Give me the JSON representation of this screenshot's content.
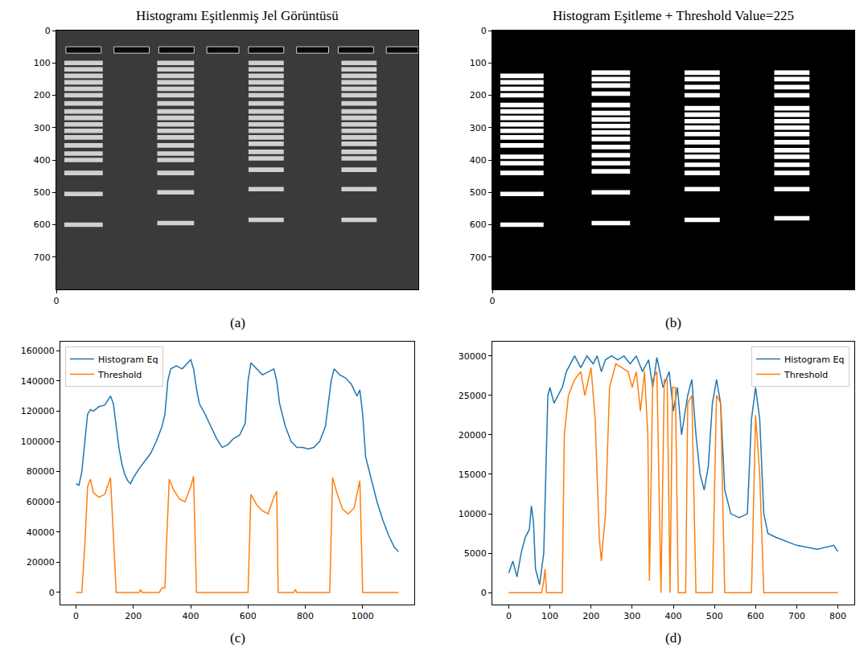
{
  "chart_data": [
    {
      "type": "image",
      "title": "Histogramı Eşitlenmiş Jel Görüntüsü",
      "panel_label": "(a)",
      "xlim": [
        0,
        1130
      ],
      "ylim": [
        800,
        0
      ],
      "xticks": [
        0
      ],
      "yticks": [
        0,
        100,
        200,
        300,
        400,
        500,
        600,
        700
      ],
      "wells": {
        "y": 60,
        "x": [
          [
            30,
            140
          ],
          [
            180,
            290
          ],
          [
            320,
            430
          ],
          [
            470,
            570
          ],
          [
            600,
            710
          ],
          [
            750,
            850
          ],
          [
            880,
            990
          ],
          [
            1030,
            1130
          ]
        ]
      },
      "lanes": [
        {
          "x": [
            25,
            145
          ],
          "bands": [
            100,
            120,
            140,
            160,
            180,
            200,
            225,
            250,
            270,
            290,
            310,
            330,
            355,
            380,
            400,
            440,
            505,
            600
          ]
        },
        {
          "x": [
            315,
            430
          ],
          "bands": [
            100,
            120,
            140,
            160,
            180,
            200,
            225,
            250,
            270,
            290,
            310,
            330,
            355,
            380,
            400,
            440,
            500,
            595
          ]
        },
        {
          "x": [
            600,
            710
          ],
          "bands": [
            100,
            120,
            140,
            160,
            180,
            200,
            225,
            250,
            270,
            290,
            310,
            330,
            350,
            375,
            395,
            430,
            490,
            585
          ]
        },
        {
          "x": [
            890,
            1000
          ],
          "bands": [
            100,
            120,
            140,
            160,
            180,
            200,
            225,
            250,
            270,
            290,
            310,
            330,
            350,
            375,
            395,
            430,
            490,
            585
          ]
        }
      ]
    },
    {
      "type": "image",
      "title": "Histogram Eşitleme + Threshold Value=225",
      "panel_label": "(b)",
      "xlim": [
        0,
        1130
      ],
      "ylim": [
        800,
        0
      ],
      "xticks": [
        0
      ],
      "yticks": [
        0,
        100,
        200,
        300,
        400,
        500,
        600,
        700
      ],
      "lanes": [
        {
          "x": [
            25,
            160
          ],
          "bands": [
            140,
            160,
            180,
            200,
            230,
            250,
            270,
            290,
            310,
            330,
            355,
            390,
            410,
            440,
            505,
            600
          ]
        },
        {
          "x": [
            310,
            430
          ],
          "bands": [
            130,
            150,
            170,
            195,
            230,
            255,
            275,
            295,
            315,
            335,
            360,
            385,
            410,
            435,
            500,
            595
          ]
        },
        {
          "x": [
            600,
            710
          ],
          "bands": [
            130,
            150,
            175,
            200,
            240,
            260,
            280,
            300,
            320,
            345,
            370,
            390,
            415,
            440,
            490,
            585
          ]
        },
        {
          "x": [
            880,
            990
          ],
          "bands": [
            130,
            150,
            175,
            200,
            240,
            260,
            280,
            300,
            320,
            345,
            370,
            390,
            415,
            440,
            490,
            580
          ]
        }
      ]
    },
    {
      "type": "line",
      "panel_label": "(c)",
      "legend": "upper left",
      "grid": false,
      "xlim": [
        -55,
        1180
      ],
      "ylim": [
        -8000,
        166000
      ],
      "xticks": [
        0,
        200,
        400,
        600,
        800,
        1000
      ],
      "yticks": [
        0,
        20000,
        40000,
        60000,
        80000,
        100000,
        120000,
        140000,
        160000
      ],
      "series": [
        {
          "name": "Histogram Eq",
          "color": "#1f77b4",
          "x": [
            0,
            10,
            20,
            30,
            40,
            50,
            60,
            80,
            100,
            120,
            130,
            140,
            150,
            160,
            170,
            180,
            190,
            200,
            220,
            240,
            260,
            280,
            300,
            310,
            320,
            330,
            350,
            370,
            390,
            400,
            410,
            420,
            430,
            450,
            470,
            490,
            510,
            530,
            550,
            570,
            590,
            600,
            610,
            630,
            650,
            670,
            690,
            700,
            710,
            730,
            750,
            770,
            790,
            810,
            830,
            850,
            870,
            890,
            900,
            920,
            940,
            960,
            980,
            990,
            1000,
            1010,
            1030,
            1050,
            1070,
            1090,
            1110,
            1125
          ],
          "values": [
            72000,
            71000,
            80000,
            100000,
            118000,
            121000,
            120000,
            123000,
            124000,
            130000,
            125000,
            110000,
            95000,
            85000,
            78000,
            74000,
            72000,
            76000,
            82000,
            87000,
            92000,
            100000,
            110000,
            118000,
            140000,
            148000,
            150000,
            148000,
            152000,
            154000,
            148000,
            135000,
            125000,
            118000,
            110000,
            102000,
            96000,
            98000,
            102000,
            104000,
            112000,
            140000,
            152000,
            148000,
            144000,
            146000,
            148000,
            140000,
            125000,
            110000,
            100000,
            96000,
            96000,
            95000,
            96000,
            100000,
            110000,
            140000,
            148000,
            144000,
            142000,
            138000,
            130000,
            134000,
            118000,
            90000,
            75000,
            60000,
            48000,
            38000,
            30000,
            27000
          ]
        },
        {
          "name": "Threshold",
          "color": "#ff7f0e",
          "x": [
            0,
            20,
            30,
            40,
            50,
            60,
            80,
            100,
            120,
            130,
            140,
            220,
            225,
            230,
            290,
            300,
            310,
            315,
            325,
            340,
            360,
            380,
            400,
            410,
            420,
            600,
            610,
            630,
            650,
            670,
            690,
            700,
            705,
            760,
            765,
            770,
            885,
            895,
            910,
            930,
            950,
            970,
            990,
            1000,
            1125
          ],
          "values": [
            0,
            0,
            30000,
            70000,
            75000,
            66000,
            63000,
            65000,
            76000,
            40000,
            0,
            0,
            2000,
            0,
            0,
            3000,
            3000,
            30000,
            75000,
            68000,
            62000,
            60000,
            70000,
            77000,
            0,
            0,
            65000,
            58000,
            54000,
            52000,
            63000,
            67000,
            0,
            0,
            2000,
            0,
            0,
            76000,
            66000,
            55000,
            52000,
            56000,
            74000,
            0,
            0
          ]
        }
      ]
    },
    {
      "type": "line",
      "panel_label": "(d)",
      "legend": "upper right",
      "grid": false,
      "xlim": [
        -40,
        840
      ],
      "ylim": [
        -1500,
        31800
      ],
      "xticks": [
        0,
        100,
        200,
        300,
        400,
        500,
        600,
        700,
        800
      ],
      "yticks": [
        0,
        5000,
        10000,
        15000,
        20000,
        25000,
        30000
      ],
      "series": [
        {
          "name": "Histogram Eq",
          "color": "#1f77b4",
          "x": [
            0,
            10,
            20,
            30,
            40,
            50,
            55,
            60,
            65,
            75,
            85,
            90,
            95,
            100,
            110,
            120,
            130,
            140,
            150,
            160,
            175,
            190,
            205,
            215,
            225,
            235,
            250,
            265,
            280,
            295,
            310,
            325,
            340,
            350,
            360,
            375,
            390,
            400,
            410,
            420,
            435,
            445,
            455,
            465,
            475,
            485,
            495,
            505,
            515,
            525,
            540,
            560,
            580,
            590,
            600,
            610,
            620,
            630,
            650,
            700,
            750,
            790,
            800
          ],
          "values": [
            2500,
            4000,
            2000,
            5000,
            7000,
            8000,
            11000,
            9000,
            3000,
            1000,
            5000,
            15000,
            25000,
            26000,
            24000,
            25000,
            26000,
            28000,
            29000,
            30000,
            28500,
            30000,
            29000,
            30000,
            28000,
            29500,
            30000,
            29500,
            30000,
            29000,
            30000,
            28000,
            29500,
            26000,
            29800,
            26000,
            28000,
            23000,
            26000,
            20000,
            25000,
            27000,
            20000,
            15000,
            13000,
            16000,
            24000,
            27000,
            24000,
            13000,
            10000,
            9500,
            10000,
            22000,
            26000,
            22000,
            10000,
            7500,
            7000,
            6000,
            5500,
            6000,
            5200
          ]
        },
        {
          "name": "Threshold",
          "color": "#ff7f0e",
          "x": [
            0,
            80,
            85,
            88,
            92,
            130,
            135,
            145,
            160,
            175,
            185,
            200,
            210,
            220,
            225,
            235,
            245,
            260,
            275,
            290,
            300,
            310,
            320,
            330,
            338,
            342,
            350,
            360,
            370,
            378,
            385,
            392,
            398,
            405,
            412,
            430,
            435,
            445,
            455,
            495,
            505,
            515,
            525,
            590,
            600,
            610,
            620,
            800
          ],
          "values": [
            0,
            0,
            1500,
            3000,
            0,
            0,
            20000,
            25000,
            27000,
            28000,
            25000,
            28500,
            22000,
            7000,
            4000,
            10000,
            26000,
            29000,
            28500,
            28000,
            26000,
            28000,
            23000,
            28000,
            20000,
            1500,
            27000,
            28000,
            0,
            27000,
            27000,
            0,
            26000,
            26000,
            0,
            0,
            24000,
            25000,
            0,
            0,
            25000,
            24000,
            0,
            0,
            22500,
            15000,
            0,
            0
          ]
        }
      ]
    }
  ]
}
